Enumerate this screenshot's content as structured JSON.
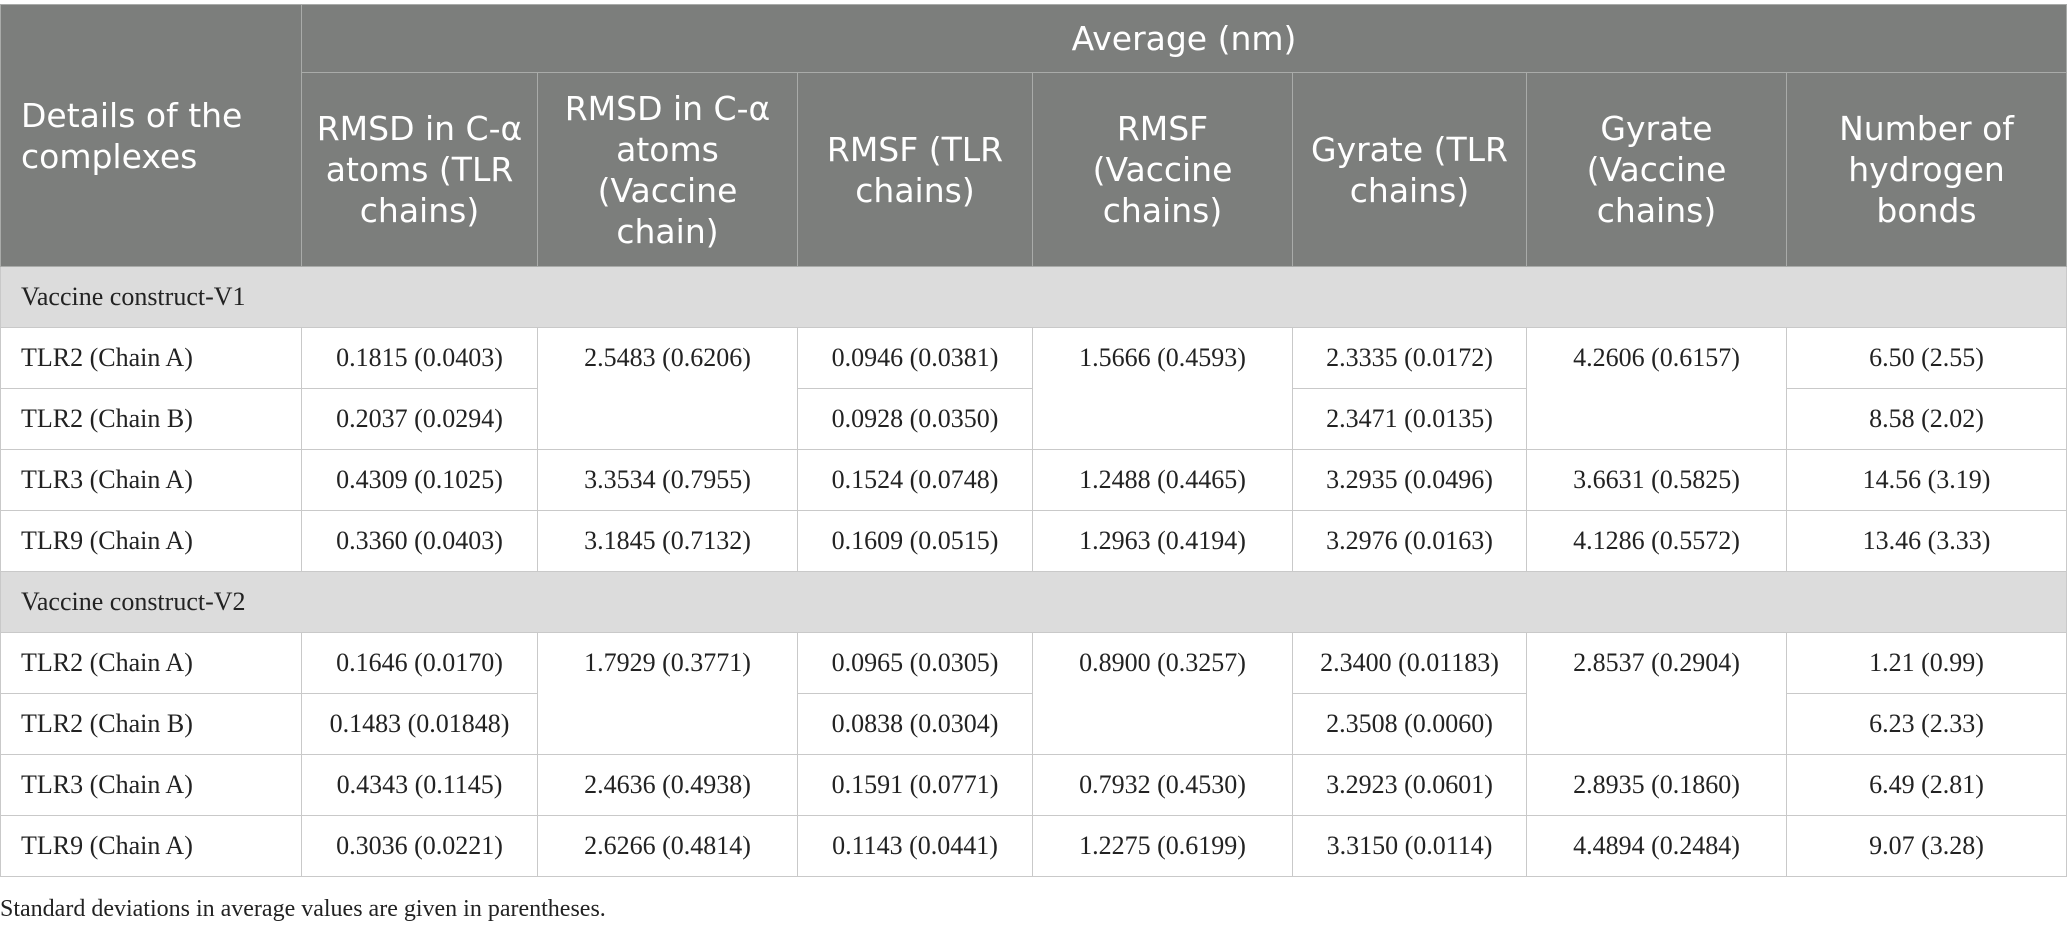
{
  "table": {
    "header": {
      "details": "Details of the complexes",
      "average": "Average (nm)",
      "columns": [
        "RMSD in C-α atoms (TLR chains)",
        "RMSD in C-α atoms (Vaccine chain)",
        "RMSF (TLR chains)",
        "RMSF (Vaccine chains)",
        "Gyrate (TLR chains)",
        "Gyrate (Vaccine chains)",
        "Number of hydrogen bonds"
      ]
    },
    "sections": [
      {
        "title": "Vaccine construct-V1",
        "rows": [
          {
            "name": "TLR2 (Chain A)",
            "rmsd_tlr": "0.1815 (0.0403)",
            "rmsd_vac": "2.5483 (0.6206)",
            "rmsf_tlr": "0.0946 (0.0381)",
            "rmsf_vac": "1.5666 (0.4593)",
            "gyr_tlr": "2.3335 (0.0172)",
            "gyr_vac": "4.2606 (0.6157)",
            "hbonds": "6.50 (2.55)"
          },
          {
            "name": "TLR2 (Chain B)",
            "rmsd_tlr": "0.2037 (0.0294)",
            "rmsf_tlr": "0.0928 (0.0350)",
            "gyr_tlr": "2.3471 (0.0135)",
            "hbonds": "8.58 (2.02)"
          },
          {
            "name": "TLR3 (Chain A)",
            "rmsd_tlr": "0.4309 (0.1025)",
            "rmsd_vac": "3.3534 (0.7955)",
            "rmsf_tlr": "0.1524 (0.0748)",
            "rmsf_vac": "1.2488 (0.4465)",
            "gyr_tlr": "3.2935 (0.0496)",
            "gyr_vac": "3.6631 (0.5825)",
            "hbonds": "14.56 (3.19)"
          },
          {
            "name": "TLR9 (Chain A)",
            "rmsd_tlr": "0.3360 (0.0403)",
            "rmsd_vac": "3.1845 (0.7132)",
            "rmsf_tlr": "0.1609 (0.0515)",
            "rmsf_vac": "1.2963 (0.4194)",
            "gyr_tlr": "3.2976 (0.0163)",
            "gyr_vac": "4.1286 (0.5572)",
            "hbonds": "13.46 (3.33)"
          }
        ]
      },
      {
        "title": "Vaccine construct-V2",
        "rows": [
          {
            "name": "TLR2 (Chain A)",
            "rmsd_tlr": "0.1646 (0.0170)",
            "rmsd_vac": "1.7929 (0.3771)",
            "rmsf_tlr": "0.0965 (0.0305)",
            "rmsf_vac": "0.8900 (0.3257)",
            "gyr_tlr": "2.3400 (0.01183)",
            "gyr_vac": "2.8537 (0.2904)",
            "hbonds": "1.21 (0.99)"
          },
          {
            "name": "TLR2 (Chain B)",
            "rmsd_tlr": "0.1483 (0.01848)",
            "rmsf_tlr": "0.0838 (0.0304)",
            "gyr_tlr": "2.3508 (0.0060)",
            "hbonds": "6.23 (2.33)"
          },
          {
            "name": "TLR3 (Chain A)",
            "rmsd_tlr": "0.4343 (0.1145)",
            "rmsd_vac": "2.4636 (0.4938)",
            "rmsf_tlr": "0.1591 (0.0771)",
            "rmsf_vac": "0.7932 (0.4530)",
            "gyr_tlr": "3.2923 (0.0601)",
            "gyr_vac": "2.8935 (0.1860)",
            "hbonds": "6.49 (2.81)"
          },
          {
            "name": "TLR9 (Chain A)",
            "rmsd_tlr": "0.3036 (0.0221)",
            "rmsd_vac": "2.6266 (0.4814)",
            "rmsf_tlr": "0.1143 (0.0441)",
            "rmsf_vac": "1.2275 (0.6199)",
            "gyr_tlr": "3.3150 (0.0114)",
            "gyr_vac": "4.4894 (0.2484)",
            "hbonds": "9.07 (3.28)"
          }
        ]
      }
    ]
  },
  "footnote": "Standard deviations in average values are given in parentheses."
}
